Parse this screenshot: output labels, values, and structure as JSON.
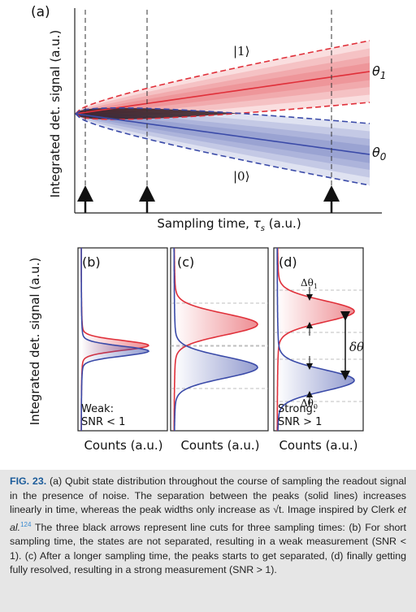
{
  "panel_a": {
    "label": "(a)",
    "y_label": "Integrated det. signal (a.u.)",
    "x_label_text": "Sampling time, ",
    "x_label_symbol": "τ",
    "x_label_sub": "s",
    "x_label_unit": " (a.u.)",
    "state_1": "|1⟩",
    "state_0": "|0⟩",
    "theta_1": "θ",
    "theta_1_sub": "1",
    "theta_0": "θ",
    "theta_0_sub": "0"
  },
  "panels_bcd": {
    "y_label": "Integrated det. signal (a.u.)",
    "x_label": "Counts (a.u.)",
    "b": {
      "label": "(b)",
      "note_1": "Weak:",
      "note_2": "SNR < 1"
    },
    "c": {
      "label": "(c)"
    },
    "d": {
      "label": "(d)",
      "note_1": "Strong:",
      "note_2": "SNR > 1",
      "delta_1": "Δθ",
      "delta_1_sub": "1",
      "delta_0": "Δθ",
      "delta_0_sub": "0",
      "separation": "δθ"
    }
  },
  "caption": {
    "fig_label": "FIG. 23.",
    "text_1": " (a) Qubit state distribution throughout the course of sampling the readout signal in the presence of noise. The separation between the peaks (solid lines) increases linearly in time, whereas the peak widths only increase as √t. Image inspired by Clerk ",
    "etal": "et al.",
    "ref": "124",
    "text_2": " The three black arrows represent line cuts for three sampling times: (b) For short sampling time, the states are not separated, resulting in a weak measurement (SNR < 1). (c) After a longer sampling time, the peaks starts to get separated, (d) finally getting fully resolved, resulting in a strong measurement (SNR > 1)."
  }
}
